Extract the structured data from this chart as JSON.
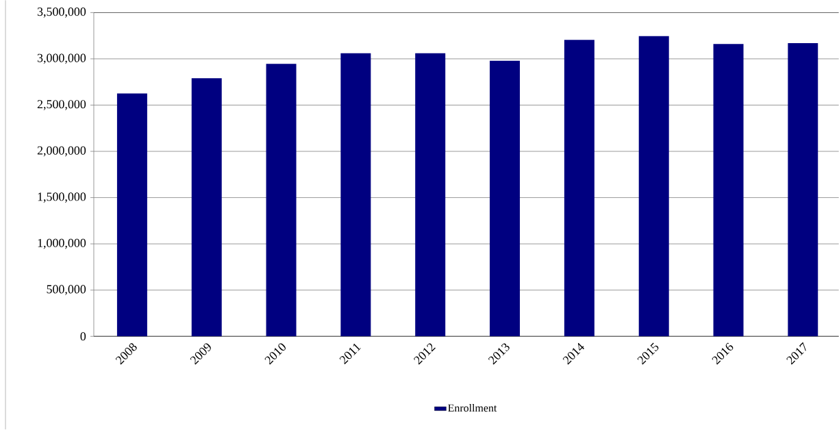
{
  "chart_data": {
    "type": "bar",
    "categories": [
      "2008",
      "2009",
      "2010",
      "2011",
      "2012",
      "2013",
      "2014",
      "2015",
      "2016",
      "2017"
    ],
    "series": [
      {
        "name": "Enrollment",
        "color": "#000080",
        "values": [
          2625000,
          2790000,
          2945000,
          3060000,
          3060000,
          2980000,
          3205000,
          3245000,
          3160000,
          3170000
        ]
      }
    ],
    "ylim": [
      0,
      3500000
    ],
    "yticks": [
      0,
      {
        "value": 500000,
        "label": "500,000"
      },
      {
        "value": 1000000,
        "label": "1,000,000"
      },
      {
        "value": 1500000,
        "label": "1,500,000"
      },
      {
        "value": 2000000,
        "label": "2,000,000"
      },
      {
        "value": 2500000,
        "label": "2,500,000"
      },
      {
        "value": 3000000,
        "label": "3,000,000"
      },
      {
        "value": 3500000,
        "label": "3,500,000"
      }
    ],
    "grid": "y",
    "legend": "bottom"
  }
}
